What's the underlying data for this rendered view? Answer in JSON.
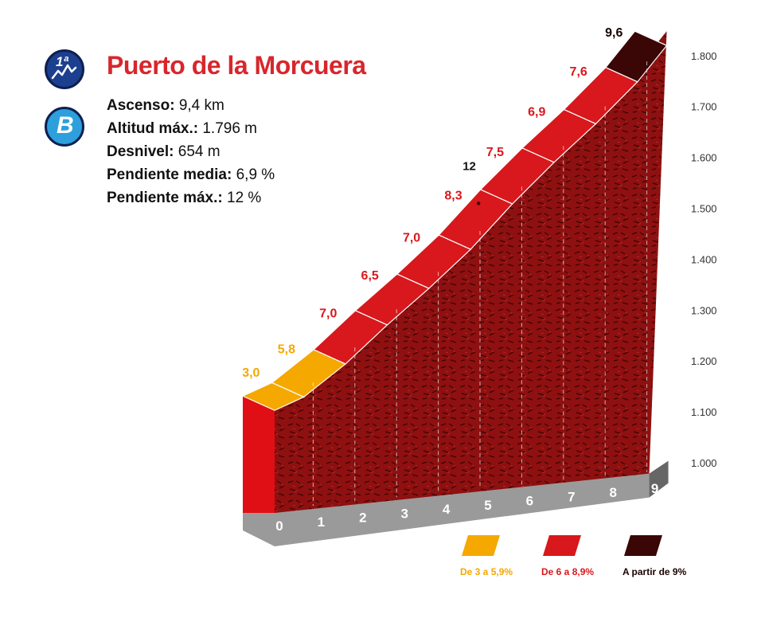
{
  "badges": {
    "category": "1ª",
    "letter": "B"
  },
  "title": "Puerto de la Morcuera",
  "stats": [
    {
      "label": "Ascenso:",
      "value": "9,4 km"
    },
    {
      "label": "Altitud máx.:",
      "value": "1.796 m"
    },
    {
      "label": "Desnivel:",
      "value": "654 m"
    },
    {
      "label": "Pendiente media:",
      "value": "6,9 %"
    },
    {
      "label": "Pendiente máx.:",
      "value": "12 %"
    }
  ],
  "colors": {
    "easy": "#f5a800",
    "medium": "#d8181c",
    "hard": "#3a0606",
    "wall": "#8e1010",
    "base": "#9a9a9a",
    "base_dark": "#666666"
  },
  "chart_data": {
    "type": "area",
    "title": "",
    "xlabel": "",
    "ylabel": "",
    "x_ticks": [
      "0",
      "1",
      "2",
      "3",
      "4",
      "5",
      "6",
      "7",
      "8",
      "9"
    ],
    "y_ticks": [
      "1.000",
      "1.100",
      "1.200",
      "1.300",
      "1.400",
      "1.500",
      "1.600",
      "1.700",
      "1.800"
    ],
    "ylim": [
      1000,
      1800
    ],
    "segments": [
      {
        "km_start": 0,
        "km_end": 0.7,
        "gradient": "3,0",
        "class": "easy"
      },
      {
        "km_start": 0.7,
        "km_end": 1.7,
        "gradient": "5,8",
        "class": "easy"
      },
      {
        "km_start": 1.7,
        "km_end": 2.7,
        "gradient": "7,0",
        "class": "medium"
      },
      {
        "km_start": 2.7,
        "km_end": 3.7,
        "gradient": "6,5",
        "class": "medium"
      },
      {
        "km_start": 3.7,
        "km_end": 4.7,
        "gradient": "7,0",
        "class": "medium"
      },
      {
        "km_start": 4.7,
        "km_end": 5.7,
        "gradient": "8,3",
        "class": "medium"
      },
      {
        "km_start": 5.7,
        "km_end": 6.7,
        "gradient": "7,5",
        "class": "medium"
      },
      {
        "km_start": 6.7,
        "km_end": 7.7,
        "gradient": "6,9",
        "class": "medium"
      },
      {
        "km_start": 7.7,
        "km_end": 8.7,
        "gradient": "7,6",
        "class": "medium"
      },
      {
        "km_start": 8.7,
        "km_end": 9.4,
        "gradient": "9,6",
        "class": "hard"
      }
    ],
    "elevation_points": [
      {
        "km": 0,
        "elev": 1142
      },
      {
        "km": 0.7,
        "elev": 1163
      },
      {
        "km": 1.7,
        "elev": 1221
      },
      {
        "km": 2.7,
        "elev": 1291
      },
      {
        "km": 3.7,
        "elev": 1356
      },
      {
        "km": 4.7,
        "elev": 1426
      },
      {
        "km": 5.7,
        "elev": 1509
      },
      {
        "km": 6.7,
        "elev": 1584
      },
      {
        "km": 7.7,
        "elev": 1653
      },
      {
        "km": 8.7,
        "elev": 1729
      },
      {
        "km": 9.4,
        "elev": 1796
      }
    ],
    "max_gradient_marker": {
      "km": 5.5,
      "label": "12"
    },
    "legend": [
      {
        "label": "De 3 a 5,9%",
        "class": "easy"
      },
      {
        "label": "De 6 a 8,9%",
        "class": "medium"
      },
      {
        "label": "A partir de 9%",
        "class": "hard"
      }
    ]
  }
}
